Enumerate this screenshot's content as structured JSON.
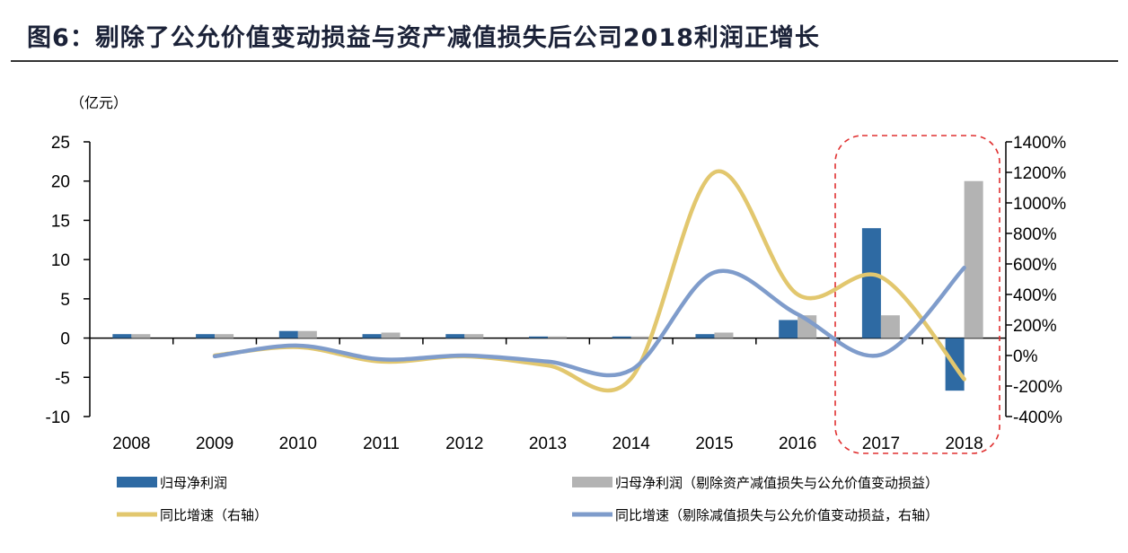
{
  "title": "图6：剔除了公允价值变动损益与资产减值损失后公司2018利润正增长",
  "chart_data": {
    "type": "bar+line",
    "title": "图6：剔除了公允价值变动损益与资产减值损失后公司2018利润正增长",
    "ylabel_left": "（亿元）",
    "categories": [
      "2008",
      "2009",
      "2010",
      "2011",
      "2012",
      "2013",
      "2014",
      "2015",
      "2016",
      "2017",
      "2018"
    ],
    "ylim_left": [
      -10,
      25
    ],
    "yticks_left": [
      "25",
      "20",
      "15",
      "10",
      "5",
      "0",
      "-5",
      "-10"
    ],
    "ylim_right": [
      -400,
      1400
    ],
    "yticks_right": [
      "1400%",
      "1200%",
      "1000%",
      "800%",
      "600%",
      "400%",
      "200%",
      "0%",
      "-200%",
      "-400%"
    ],
    "series": [
      {
        "name": "归母净利润",
        "type": "bar",
        "axis": "left",
        "color": "#2e6aa3",
        "values": [
          0.5,
          0.5,
          0.9,
          0.5,
          0.5,
          0.2,
          0.2,
          0.5,
          2.3,
          14.0,
          -6.7
        ]
      },
      {
        "name": "归母净利润（剔除资产减值损失与公允价值变动损益）",
        "type": "bar",
        "axis": "left",
        "color": "#b3b3b3",
        "values": [
          0.5,
          0.5,
          0.9,
          0.7,
          0.5,
          0.2,
          0.2,
          0.7,
          2.9,
          2.9,
          20.0
        ]
      },
      {
        "name": "同比增速（右轴）",
        "type": "line",
        "axis": "right",
        "color": "#e2c76e",
        "values": [
          null,
          0,
          55,
          -40,
          -5,
          -65,
          -150,
          1200,
          400,
          515,
          -155
        ]
      },
      {
        "name": "同比增速（剔除减值损失与公允价值变动损益，右轴）",
        "type": "line",
        "axis": "right",
        "color": "#7f9ccb",
        "values": [
          null,
          -5,
          65,
          -25,
          0,
          -40,
          -95,
          545,
          270,
          5,
          575
        ]
      }
    ],
    "highlight": {
      "categories": [
        "2017",
        "2018"
      ],
      "style": "red dashed rounded box",
      "color": "#e03030"
    },
    "legend_position": "bottom",
    "grid": false
  }
}
